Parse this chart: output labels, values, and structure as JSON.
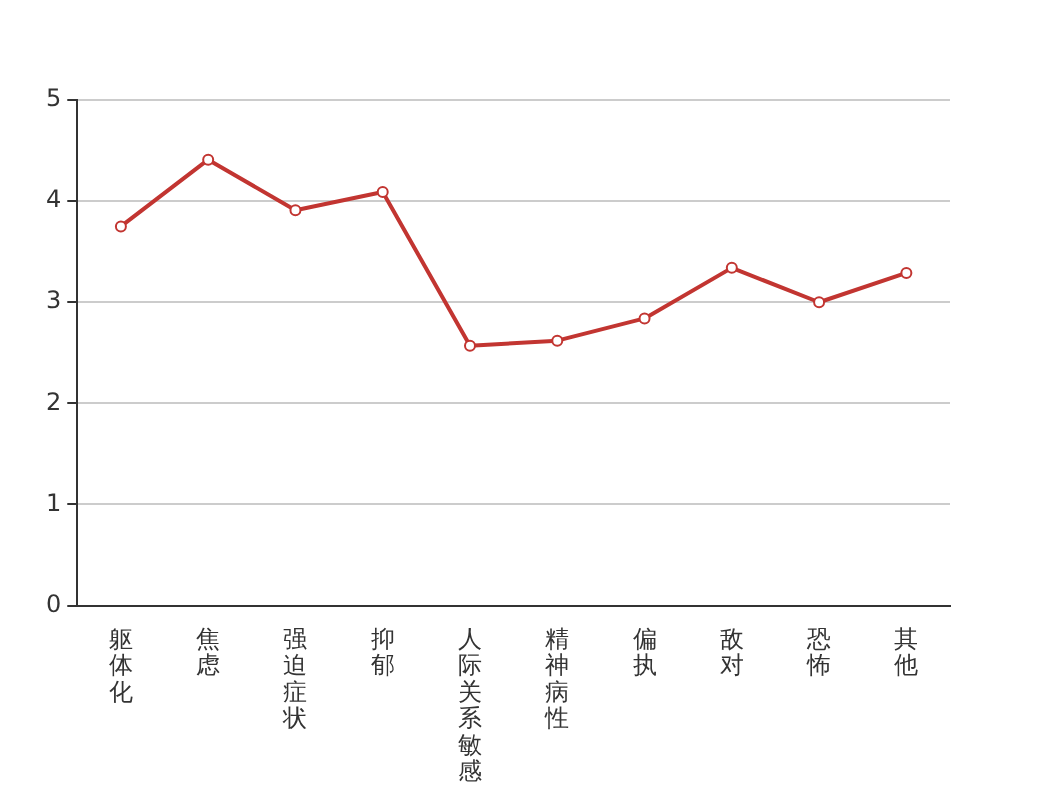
{
  "chart_data": {
    "type": "line",
    "categories": [
      "躯体化",
      "焦虑",
      "强迫症状",
      "抑郁",
      "人际关系敏感",
      "精神病性",
      "偏执",
      "敌对",
      "恐怖",
      "其他"
    ],
    "series": [
      {
        "color": "#c23531",
        "values": [
          3.75,
          4.41,
          3.91,
          4.09,
          2.57,
          2.62,
          2.84,
          3.34,
          3.0,
          3.29
        ]
      }
    ],
    "ylim": [
      0,
      5
    ],
    "yticks": [
      0,
      1,
      2,
      3,
      4,
      5
    ],
    "grid": "y",
    "marker": "circle",
    "line_style": "solid",
    "legend": false
  }
}
